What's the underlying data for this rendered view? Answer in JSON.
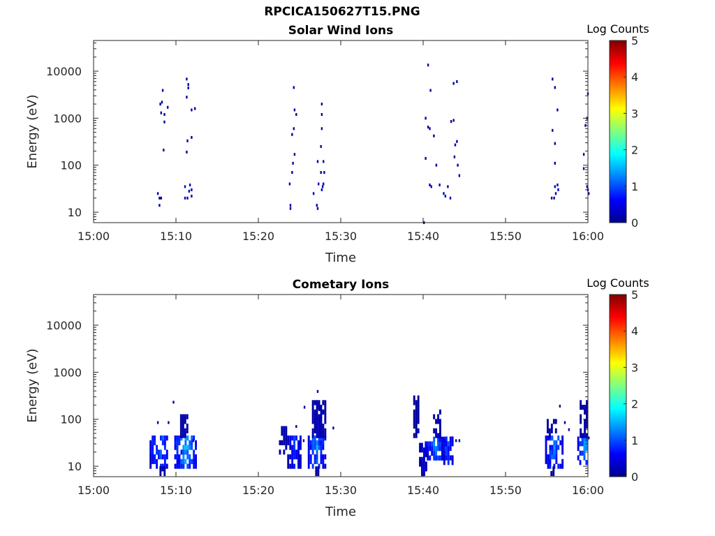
{
  "page_title": "RPCICA150627T15.PNG",
  "colors": {
    "axis": "#262626",
    "colormap": "jet"
  },
  "chart_data": [
    {
      "type": "heatmap",
      "title": "Solar Wind Ions",
      "xlabel": "Time",
      "ylabel": "Energy (eV)",
      "y_scale": "log",
      "ylim": [
        6,
        45000
      ],
      "xlim": [
        "15:00",
        "16:00"
      ],
      "xticks": [
        "15:00",
        "15:10",
        "15:20",
        "15:30",
        "15:40",
        "15:50",
        "16:00"
      ],
      "yticks": [
        10,
        100,
        1000,
        10000
      ],
      "ytick_labels": [
        "10",
        "100",
        "1000",
        "10000"
      ],
      "colorbar": {
        "label": "Log Counts",
        "range": [
          0,
          5
        ],
        "ticks": [
          "0",
          "1",
          "2",
          "3",
          "4",
          "5"
        ]
      },
      "grid": false,
      "cells": [
        [
          "15:07.7",
          25,
          0.2
        ],
        [
          "15:07.9",
          20,
          0.1
        ],
        [
          "15:07.9",
          14,
          0.1
        ],
        [
          "15:08.1",
          20,
          0.1
        ],
        [
          "15:08.0",
          2000,
          0.1
        ],
        [
          "15:08.2",
          2200,
          0.1
        ],
        [
          "15:08.3",
          3900,
          0.1
        ],
        [
          "15:08.1",
          1300,
          0.1
        ],
        [
          "15:08.5",
          1200,
          0.1
        ],
        [
          "15:08.5",
          830,
          0.1
        ],
        [
          "15:08.9",
          1700,
          0.1
        ],
        [
          "15:08.4",
          210,
          0.1
        ],
        [
          "15:11.0",
          20,
          0.3
        ],
        [
          "15:11.3",
          20,
          0.3
        ],
        [
          "15:11.0",
          35,
          0.2
        ],
        [
          "15:11.6",
          38,
          0.3
        ],
        [
          "15:11.8",
          30,
          0.3
        ],
        [
          "15:11.8",
          22,
          0.3
        ],
        [
          "15:11.5",
          28,
          0.2
        ],
        [
          "15:11.2",
          6800,
          0.1
        ],
        [
          "15:11.4",
          5200,
          0.1
        ],
        [
          "15:11.4",
          4400,
          0.1
        ],
        [
          "15:11.2",
          2800,
          0.1
        ],
        [
          "15:11.8",
          1500,
          0.1
        ],
        [
          "15:12.2",
          1600,
          0.1
        ],
        [
          "15:11.3",
          330,
          0.1
        ],
        [
          "15:11.2",
          190,
          0.1
        ],
        [
          "15:11.8",
          390,
          0.1
        ],
        [
          "15:23.7",
          40,
          0.2
        ],
        [
          "15:23.8",
          12,
          0.1
        ],
        [
          "15:23.8",
          14,
          0.1
        ],
        [
          "15:24.0",
          70,
          0.1
        ],
        [
          "15:24.1",
          110,
          0.1
        ],
        [
          "15:24.3",
          170,
          0.1
        ],
        [
          "15:24.2",
          600,
          0.1
        ],
        [
          "15:24.0",
          450,
          0.1
        ],
        [
          "15:24.3",
          1500,
          0.1
        ],
        [
          "15:24.5",
          1200,
          0.1
        ],
        [
          "15:24.2",
          4500,
          0.1
        ],
        [
          "15:26.6",
          25,
          0.2
        ],
        [
          "15:27.0",
          14,
          0.1
        ],
        [
          "15:27.1",
          12,
          0.1
        ],
        [
          "15:27.2",
          40,
          0.2
        ],
        [
          "15:27.6",
          30,
          0.3
        ],
        [
          "15:27.8",
          40,
          0.3
        ],
        [
          "15:27.7",
          35,
          0.2
        ],
        [
          "15:27.1",
          120,
          0.1
        ],
        [
          "15:27.5",
          70,
          0.1
        ],
        [
          "15:27.9",
          70,
          0.1
        ],
        [
          "15:27.8",
          120,
          0.1
        ],
        [
          "15:27.5",
          250,
          0.1
        ],
        [
          "15:27.6",
          600,
          0.1
        ],
        [
          "15:27.6",
          1200,
          0.1
        ],
        [
          "15:27.6",
          2000,
          0.1
        ],
        [
          "15:40.2",
          140,
          0.1
        ],
        [
          "15:40.2",
          1000,
          0.1
        ],
        [
          "15:40.5",
          650,
          0.1
        ],
        [
          "15:40.7",
          600,
          0.1
        ],
        [
          "15:40.5",
          13500,
          0.1
        ],
        [
          "15:40.8",
          3900,
          0.1
        ],
        [
          "15:40.7",
          38,
          0.3
        ],
        [
          "15:40.9",
          35,
          0.3
        ],
        [
          "15:41.2",
          420,
          0.1
        ],
        [
          "15:41.5",
          100,
          0.1
        ],
        [
          "15:41.9",
          38,
          0.2
        ],
        [
          "15:42.4",
          25,
          0.3
        ],
        [
          "15:42.6",
          22,
          0.3
        ],
        [
          "15:42.9",
          35,
          0.3
        ],
        [
          "15:43.2",
          20,
          0.3
        ],
        [
          "15:43.3",
          850,
          0.1
        ],
        [
          "15:43.6",
          900,
          0.1
        ],
        [
          "15:43.6",
          5500,
          0.1
        ],
        [
          "15:44.0",
          6000,
          0.1
        ],
        [
          "15:43.8",
          270,
          0.1
        ],
        [
          "15:44.0",
          320,
          0.1
        ],
        [
          "15:43.7",
          150,
          0.1
        ],
        [
          "15:44.1",
          100,
          0.1
        ],
        [
          "15:44.3",
          60,
          0.1
        ],
        [
          "15:55.5",
          20,
          0.3
        ],
        [
          "15:55.8",
          20,
          0.3
        ],
        [
          "15:55.9",
          35,
          0.2
        ],
        [
          "15:56.2",
          38,
          0.3
        ],
        [
          "15:56.3",
          30,
          0.3
        ],
        [
          "15:56.0",
          25,
          0.2
        ],
        [
          "15:55.6",
          6800,
          0.1
        ],
        [
          "15:55.9",
          4500,
          0.1
        ],
        [
          "15:56.2",
          1500,
          0.1
        ],
        [
          "15:55.6",
          550,
          0.1
        ],
        [
          "15:55.9",
          290,
          0.1
        ],
        [
          "15:55.9",
          110,
          0.1
        ],
        [
          "15:59.4",
          170,
          0.1
        ],
        [
          "15:59.4",
          85,
          0.1
        ],
        [
          "15:59.6",
          700,
          0.1
        ],
        [
          "15:59.8",
          1000,
          0.1
        ],
        [
          "15:59.9",
          3300,
          0.1
        ],
        [
          "15:59.8",
          35,
          0.2
        ],
        [
          "16:00.0",
          25,
          0.2
        ],
        [
          "15:59.9",
          30,
          0.3
        ],
        [
          "16:00.2",
          28,
          0.2
        ],
        [
          "16:00.1",
          520,
          0.1
        ],
        [
          "16:00.3",
          560,
          0.1
        ],
        [
          "15:40.0",
          6,
          0.1
        ]
      ]
    },
    {
      "type": "heatmap",
      "title": "Cometary Ions",
      "xlabel": "Time",
      "ylabel": "Energy (eV)",
      "y_scale": "log",
      "ylim": [
        6,
        45000
      ],
      "xlim": [
        "15:00",
        "16:00"
      ],
      "xticks": [
        "15:00",
        "15:10",
        "15:20",
        "15:30",
        "15:40",
        "15:50",
        "16:00"
      ],
      "yticks": [
        10,
        100,
        1000,
        10000
      ],
      "ytick_labels": [
        "10",
        "100",
        "1000",
        "10000"
      ],
      "colorbar": {
        "label": "Log Counts",
        "range": [
          0,
          5
        ],
        "ticks": [
          "0",
          "1",
          "2",
          "3",
          "4",
          "5"
        ]
      },
      "grid": false,
      "clusters": [
        {
          "t": [
            "15:06.8",
            "15:09.0"
          ],
          "e": [
            10,
            45
          ],
          "peak": 1.5
        },
        {
          "t": [
            "15:08.0",
            "15:08.5"
          ],
          "e": [
            7,
            10
          ],
          "peak": 0.3
        },
        {
          "t": [
            "15:09.8",
            "15:12.4"
          ],
          "e": [
            10,
            45
          ],
          "peak": 1.9
        },
        {
          "t": [
            "15:10.5",
            "15:11.3"
          ],
          "e": [
            45,
            120
          ],
          "peak": 0.3
        },
        {
          "t": [
            "15:22.5",
            "15:23.3"
          ],
          "e": [
            20,
            65
          ],
          "peak": 0.3
        },
        {
          "t": [
            "15:23.5",
            "15:25.0"
          ],
          "e": [
            10,
            45
          ],
          "peak": 1.0
        },
        {
          "t": [
            "15:26.0",
            "15:28.0"
          ],
          "e": [
            10,
            45
          ],
          "peak": 1.7
        },
        {
          "t": [
            "15:26.5",
            "15:28.0"
          ],
          "e": [
            45,
            260
          ],
          "peak": 0.4
        },
        {
          "t": [
            "15:26.9",
            "15:27.3"
          ],
          "e": [
            7,
            10
          ],
          "peak": 0.3
        },
        {
          "t": [
            "15:38.8",
            "15:39.5"
          ],
          "e": [
            45,
            300
          ],
          "peak": 0.2
        },
        {
          "t": [
            "15:39.5",
            "15:40.4"
          ],
          "e": [
            7,
            30
          ],
          "peak": 0.6
        },
        {
          "t": [
            "15:40.2",
            "15:42.5"
          ],
          "e": [
            15,
            45
          ],
          "peak": 1.5
        },
        {
          "t": [
            "15:41.2",
            "15:42.0"
          ],
          "e": [
            45,
            150
          ],
          "peak": 0.4
        },
        {
          "t": [
            "15:42.2",
            "15:43.5"
          ],
          "e": [
            12,
            45
          ],
          "peak": 1.2
        },
        {
          "t": [
            "15:54.8",
            "15:56.8"
          ],
          "e": [
            10,
            45
          ],
          "peak": 1.6
        },
        {
          "t": [
            "15:55.2",
            "15:55.8"
          ],
          "e": [
            7,
            10
          ],
          "peak": 0.3
        },
        {
          "t": [
            "15:55.0",
            "15:56.0"
          ],
          "e": [
            45,
            100
          ],
          "peak": 0.3
        },
        {
          "t": [
            "15:58.7",
            "16:00.4"
          ],
          "e": [
            12,
            45
          ],
          "peak": 1.7
        },
        {
          "t": [
            "15:59.0",
            "15:59.9"
          ],
          "e": [
            45,
            230
          ],
          "peak": 0.3
        }
      ],
      "cells": [
        [
          "15:09.6",
          230,
          0.1
        ],
        [
          "15:07.7",
          85,
          0.1
        ],
        [
          "15:09.0",
          85,
          0.1
        ],
        [
          "15:12.0",
          35,
          0.3
        ],
        [
          "15:24.5",
          70,
          0.1
        ],
        [
          "15:25.0",
          35,
          0.3
        ],
        [
          "15:25.4",
          35,
          0.2
        ],
        [
          "15:25.5",
          180,
          0.1
        ],
        [
          "15:27.1",
          390,
          0.1
        ],
        [
          "15:27.3",
          160,
          0.2
        ],
        [
          "15:29.0",
          65,
          0.1
        ],
        [
          "15:42.5",
          35,
          0.2
        ],
        [
          "15:43.9",
          35,
          0.3
        ],
        [
          "15:44.3",
          35,
          0.2
        ],
        [
          "15:56.5",
          190,
          0.1
        ],
        [
          "15:57.1",
          85,
          0.1
        ],
        [
          "15:57.6",
          60,
          0.1
        ],
        [
          "16:00.0",
          40,
          0.2
        ]
      ]
    }
  ]
}
